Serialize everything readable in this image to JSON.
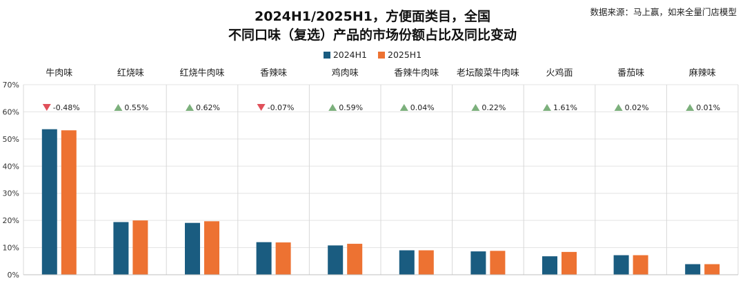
{
  "header": {
    "title_line1": "2024H1/2025H1，方便面类目，全国",
    "title_line2": "不同口味（复选）产品的市场份额占比及同比变动",
    "source": "数据来源：马上赢，如来全量门店模型"
  },
  "colors": {
    "series_2024": "#1a5c80",
    "series_2025": "#ed7232",
    "up": "#7cb07c",
    "down": "#e0505a",
    "grid": "#e3e3e3",
    "separator": "#d8d8d8"
  },
  "chart_data": {
    "type": "bar",
    "categories": [
      "牛肉味",
      "红烧味",
      "红烧牛肉味",
      "香辣味",
      "鸡肉味",
      "香辣牛肉味",
      "老坛酸菜牛肉味",
      "火鸡面",
      "番茄味",
      "麻辣味"
    ],
    "series": [
      {
        "name": "2024H1",
        "values": [
          53.6,
          19.4,
          19.1,
          12.0,
          10.8,
          9.0,
          8.6,
          6.8,
          7.2,
          3.9
        ]
      },
      {
        "name": "2025H1",
        "values": [
          53.2,
          20.0,
          19.7,
          11.9,
          11.4,
          9.0,
          8.8,
          8.4,
          7.2,
          3.9
        ]
      }
    ],
    "changes": [
      {
        "label": "-0.48%",
        "direction": "down"
      },
      {
        "label": "0.55%",
        "direction": "up"
      },
      {
        "label": "0.62%",
        "direction": "up"
      },
      {
        "label": "-0.07%",
        "direction": "down"
      },
      {
        "label": "0.59%",
        "direction": "up"
      },
      {
        "label": "0.04%",
        "direction": "up"
      },
      {
        "label": "0.22%",
        "direction": "up"
      },
      {
        "label": "1.61%",
        "direction": "up"
      },
      {
        "label": "0.02%",
        "direction": "up"
      },
      {
        "label": "0.01%",
        "direction": "up"
      }
    ],
    "ylim": [
      0,
      70
    ],
    "yticks": [
      "0%",
      "10%",
      "20%",
      "30%",
      "40%",
      "50%",
      "60%",
      "70%"
    ],
    "legend_position": "top-center",
    "grid": true
  }
}
